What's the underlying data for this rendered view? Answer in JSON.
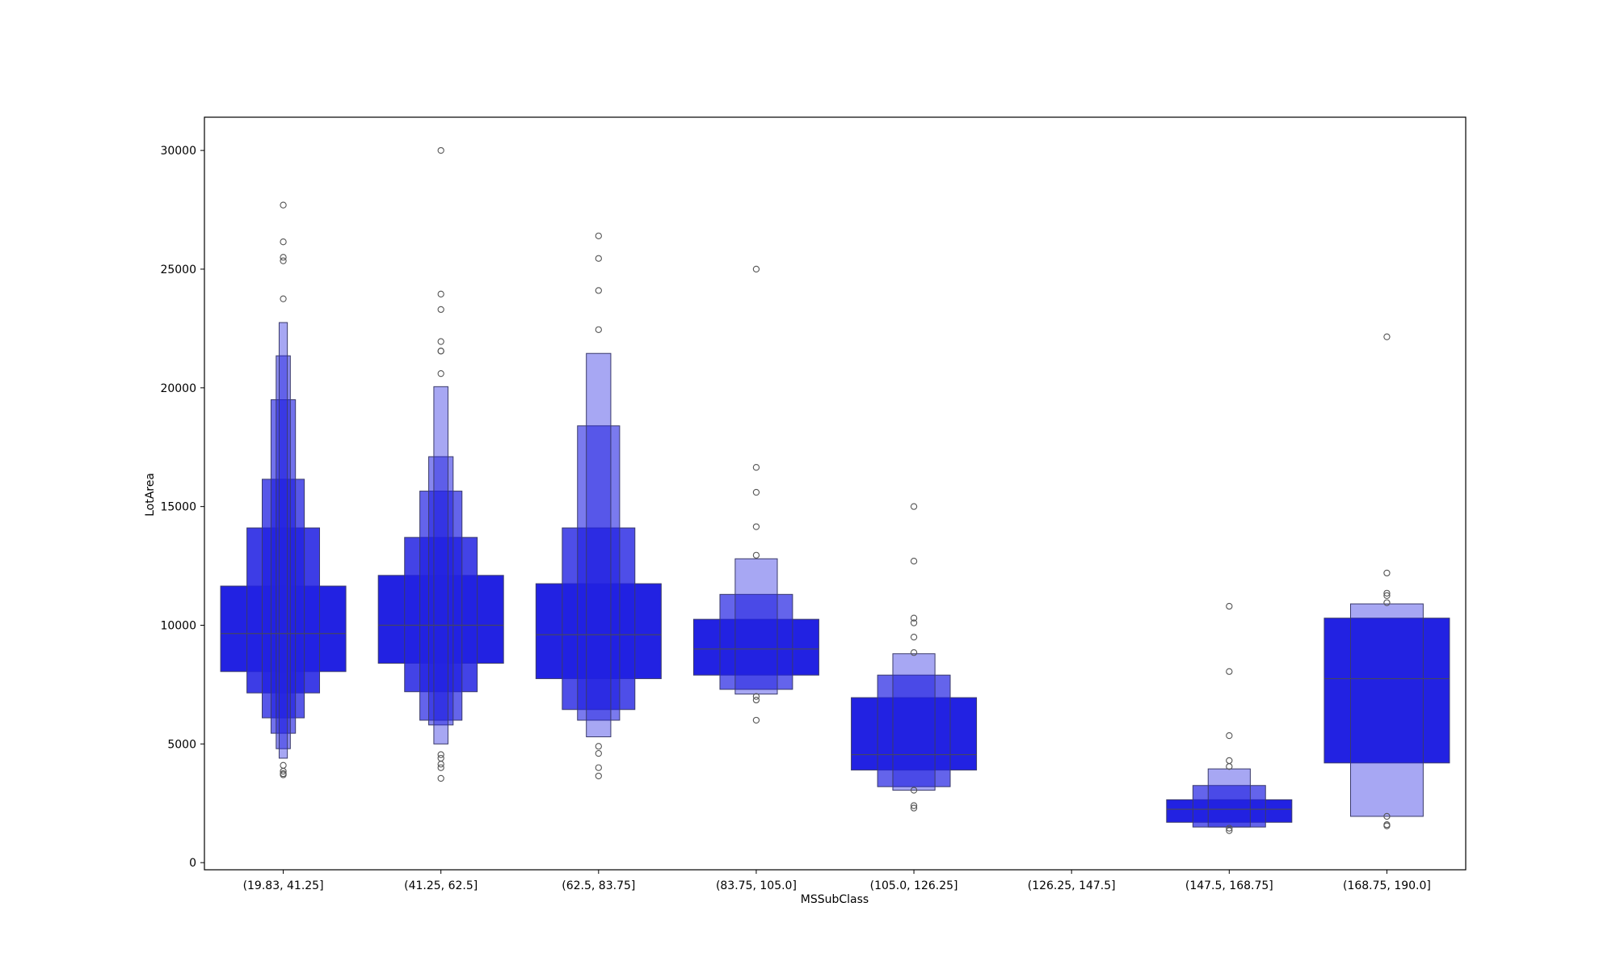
{
  "chart_data": {
    "type": "boxen",
    "title": "",
    "xlabel": "MSSubClass",
    "ylabel": "LotArea",
    "ylim": [
      -300,
      31400
    ],
    "yticks": [
      0,
      5000,
      10000,
      15000,
      20000,
      25000,
      30000
    ],
    "grid": false,
    "legend": "none",
    "colors": {
      "box": "#2222e2",
      "edge": "#3a3a6a",
      "outlier": "#555555",
      "frame": "#000000"
    },
    "categories": [
      "(19.83, 41.25]",
      "(41.25, 62.5]",
      "(62.5, 83.75]",
      "(83.75, 105.0]",
      "(105.0, 126.25]",
      "(126.25, 147.5]",
      "(147.5, 168.75]",
      "(168.75, 190.0]"
    ],
    "groups": [
      {
        "category": "(19.83, 41.25]",
        "median": 9650,
        "levels": [
          [
            8050,
            11650
          ],
          [
            7150,
            14100
          ],
          [
            6100,
            16150
          ],
          [
            5450,
            19500
          ],
          [
            4800,
            21350
          ],
          [
            4400,
            22750
          ]
        ],
        "outliers": [
          27700,
          26150,
          25500,
          25350,
          23750,
          4100,
          3850,
          3750,
          3700
        ]
      },
      {
        "category": "(41.25, 62.5]",
        "median": 10000,
        "levels": [
          [
            8400,
            12100
          ],
          [
            7200,
            13700
          ],
          [
            6000,
            15650
          ],
          [
            5800,
            17100
          ],
          [
            5000,
            20050
          ]
        ],
        "outliers": [
          30000,
          23950,
          23300,
          21950,
          21550,
          21550,
          20600,
          4550,
          4400,
          4150,
          4000,
          3550
        ]
      },
      {
        "category": "(62.5, 83.75]",
        "median": 9600,
        "levels": [
          [
            7750,
            11750
          ],
          [
            6450,
            14100
          ],
          [
            6000,
            18400
          ],
          [
            5300,
            21450
          ]
        ],
        "outliers": [
          26400,
          25450,
          24100,
          22450,
          4900,
          4600,
          4000,
          3650
        ]
      },
      {
        "category": "(83.75, 105.0]",
        "median": 9000,
        "levels": [
          [
            7900,
            10250
          ],
          [
            7300,
            11300
          ],
          [
            7100,
            12800
          ]
        ],
        "outliers": [
          25000,
          16650,
          15600,
          14150,
          12950,
          7000,
          6850,
          6000
        ]
      },
      {
        "category": "(105.0, 126.25]",
        "median": 4550,
        "levels": [
          [
            3900,
            6950
          ],
          [
            3200,
            7900
          ],
          [
            3050,
            8800
          ]
        ],
        "outliers": [
          15000,
          12700,
          10300,
          10100,
          9500,
          8850,
          3050,
          2400,
          2300
        ]
      },
      {
        "category": "(126.25, 147.5]",
        "median": null,
        "levels": [],
        "outliers": []
      },
      {
        "category": "(147.5, 168.75]",
        "median": 2250,
        "levels": [
          [
            1700,
            2650
          ],
          [
            1500,
            3250
          ],
          [
            1500,
            3950
          ]
        ],
        "outliers": [
          10800,
          8050,
          5350,
          4300,
          4050,
          1450,
          1350
        ]
      },
      {
        "category": "(168.75, 190.0]",
        "median": 7750,
        "levels": [
          [
            4200,
            10300
          ],
          [
            1950,
            10900
          ]
        ],
        "outliers": [
          22150,
          12200,
          11350,
          11250,
          10950,
          1950,
          1600,
          1550
        ]
      }
    ]
  }
}
